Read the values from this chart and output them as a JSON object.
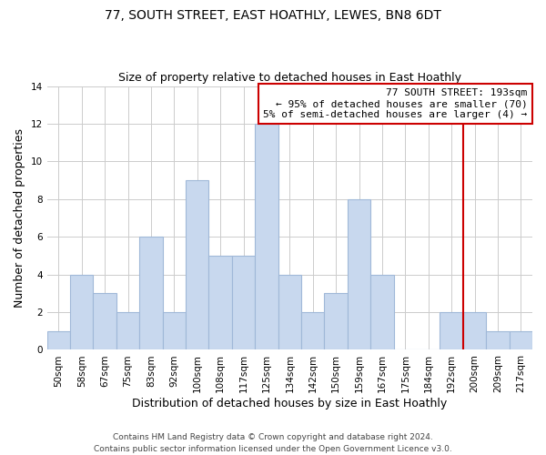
{
  "title": "77, SOUTH STREET, EAST HOATHLY, LEWES, BN8 6DT",
  "subtitle": "Size of property relative to detached houses in East Hoathly",
  "xlabel": "Distribution of detached houses by size in East Hoathly",
  "ylabel": "Number of detached properties",
  "bar_color": "#c8d8ee",
  "bar_edge_color": "#a0b8d8",
  "categories": [
    "50sqm",
    "58sqm",
    "67sqm",
    "75sqm",
    "83sqm",
    "92sqm",
    "100sqm",
    "108sqm",
    "117sqm",
    "125sqm",
    "134sqm",
    "142sqm",
    "150sqm",
    "159sqm",
    "167sqm",
    "175sqm",
    "184sqm",
    "192sqm",
    "200sqm",
    "209sqm",
    "217sqm"
  ],
  "values": [
    1,
    4,
    3,
    2,
    6,
    2,
    9,
    5,
    5,
    12,
    4,
    2,
    3,
    8,
    4,
    0,
    0,
    2,
    2,
    1,
    1
  ],
  "ylim": [
    0,
    14
  ],
  "yticks": [
    0,
    2,
    4,
    6,
    8,
    10,
    12,
    14
  ],
  "vline_index": 17,
  "vline_color": "#cc0000",
  "annotation_title": "77 SOUTH STREET: 193sqm",
  "annotation_line1": "← 95% of detached houses are smaller (70)",
  "annotation_line2": "5% of semi-detached houses are larger (4) →",
  "annotation_box_color": "#cc0000",
  "footer_line1": "Contains HM Land Registry data © Crown copyright and database right 2024.",
  "footer_line2": "Contains public sector information licensed under the Open Government Licence v3.0.",
  "background_color": "#ffffff",
  "grid_color": "#cccccc",
  "title_fontsize": 10,
  "subtitle_fontsize": 9,
  "axis_label_fontsize": 9,
  "tick_fontsize": 7.5,
  "annotation_fontsize": 8,
  "footer_fontsize": 6.5
}
